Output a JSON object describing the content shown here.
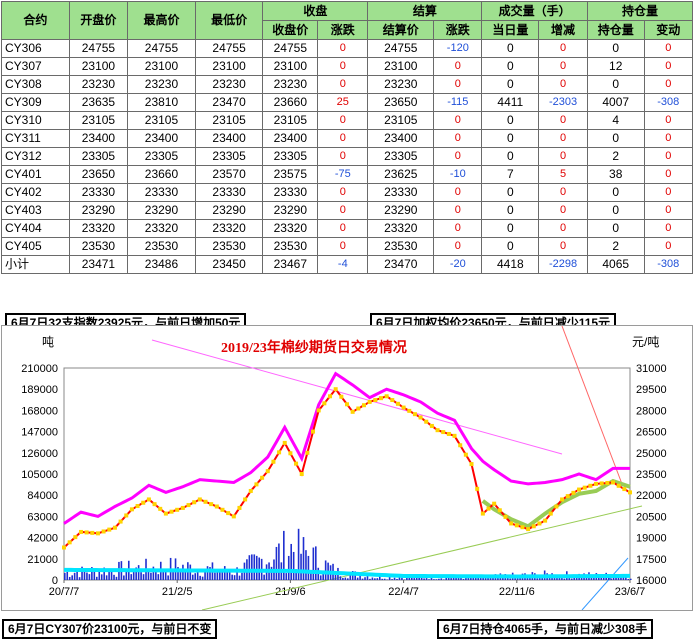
{
  "table": {
    "header_top": [
      "合约",
      "开盘价",
      "最高价",
      "最低价",
      "收盘",
      "结算",
      "成交量（手）",
      "持仓量"
    ],
    "header_sub": [
      "收盘价",
      "涨跌",
      "结算价",
      "涨跌",
      "当日量",
      "增减",
      "持仓量",
      "变动"
    ],
    "rows": [
      {
        "contract": "CY306",
        "open": "24755",
        "high": "24755",
        "low": "24755",
        "close": "24755",
        "chg": "0",
        "settle": "24755",
        "schg": "-120",
        "vol": "0",
        "vchg": "0",
        "oi": "0",
        "oichg": "0"
      },
      {
        "contract": "CY307",
        "open": "23100",
        "high": "23100",
        "low": "23100",
        "close": "23100",
        "chg": "0",
        "settle": "23100",
        "schg": "0",
        "vol": "0",
        "vchg": "0",
        "oi": "12",
        "oichg": "0"
      },
      {
        "contract": "CY308",
        "open": "23230",
        "high": "23230",
        "low": "23230",
        "close": "23230",
        "chg": "0",
        "settle": "23230",
        "schg": "0",
        "vol": "0",
        "vchg": "0",
        "oi": "0",
        "oichg": "0"
      },
      {
        "contract": "CY309",
        "open": "23635",
        "high": "23810",
        "low": "23470",
        "close": "23660",
        "chg": "25",
        "settle": "23650",
        "schg": "-115",
        "vol": "4411",
        "vchg": "-2303",
        "oi": "4007",
        "oichg": "-308"
      },
      {
        "contract": "CY310",
        "open": "23105",
        "high": "23105",
        "low": "23105",
        "close": "23105",
        "chg": "0",
        "settle": "23105",
        "schg": "0",
        "vol": "0",
        "vchg": "0",
        "oi": "4",
        "oichg": "0"
      },
      {
        "contract": "CY311",
        "open": "23400",
        "high": "23400",
        "low": "23400",
        "close": "23400",
        "chg": "0",
        "settle": "23400",
        "schg": "0",
        "vol": "0",
        "vchg": "0",
        "oi": "0",
        "oichg": "0"
      },
      {
        "contract": "CY312",
        "open": "23305",
        "high": "23305",
        "low": "23305",
        "close": "23305",
        "chg": "0",
        "settle": "23305",
        "schg": "0",
        "vol": "0",
        "vchg": "0",
        "oi": "2",
        "oichg": "0"
      },
      {
        "contract": "CY401",
        "open": "23650",
        "high": "23660",
        "low": "23570",
        "close": "23575",
        "chg": "-75",
        "settle": "23625",
        "schg": "-10",
        "vol": "7",
        "vchg": "5",
        "oi": "38",
        "oichg": "0"
      },
      {
        "contract": "CY402",
        "open": "23330",
        "high": "23330",
        "low": "23330",
        "close": "23330",
        "chg": "0",
        "settle": "23330",
        "schg": "0",
        "vol": "0",
        "vchg": "0",
        "oi": "0",
        "oichg": "0"
      },
      {
        "contract": "CY403",
        "open": "23290",
        "high": "23290",
        "low": "23290",
        "close": "23290",
        "chg": "0",
        "settle": "23290",
        "schg": "0",
        "vol": "0",
        "vchg": "0",
        "oi": "0",
        "oichg": "0"
      },
      {
        "contract": "CY404",
        "open": "23320",
        "high": "23320",
        "low": "23320",
        "close": "23320",
        "chg": "0",
        "settle": "23320",
        "schg": "0",
        "vol": "0",
        "vchg": "0",
        "oi": "0",
        "oichg": "0"
      },
      {
        "contract": "CY405",
        "open": "23530",
        "high": "23530",
        "low": "23530",
        "close": "23530",
        "chg": "0",
        "settle": "23530",
        "schg": "0",
        "vol": "0",
        "vchg": "0",
        "oi": "2",
        "oichg": "0"
      },
      {
        "contract": "小计",
        "open": "23471",
        "high": "23486",
        "low": "23450",
        "close": "23467",
        "chg": "-4",
        "settle": "23470",
        "schg": "-20",
        "vol": "4418",
        "vchg": "-2298",
        "oi": "4065",
        "oichg": "-308"
      }
    ]
  },
  "callouts": {
    "top_left": "6月7日32支指数23925元，与前日增加50元",
    "top_right": "6月7日加权均价23650元，与前日减少115元",
    "bottom_left": "6月7日CY307价23100元，与前日不变",
    "bottom_right": "6月7日持仓4065手，与前日减少308手"
  },
  "colors": {
    "header_bg": "#9fe08f",
    "positive": "#e00000",
    "negative": "#1f4fd8",
    "index_line": "#ff00ff",
    "price_line": "#ff0000",
    "price_marker": "#ffd400",
    "avg_line": "#99cc55",
    "volume_bar": "#1f2fd0",
    "open_interest": "#00e5ff",
    "title": "#e00000"
  },
  "chart_data": {
    "type": "line",
    "title": "2019/23年棉纱期货日交易情况",
    "left_unit": "吨",
    "right_unit": "元/吨",
    "y_left_ticks": [
      "0",
      "21000",
      "42000",
      "63000",
      "84000",
      "105000",
      "126000",
      "147000",
      "168000",
      "189000",
      "210000"
    ],
    "y_right_ticks": [
      "16000",
      "17500",
      "19000",
      "20500",
      "22000",
      "23500",
      "25000",
      "26500",
      "28000",
      "29500",
      "31000"
    ],
    "ylim_left": [
      0,
      210000
    ],
    "ylim_right": [
      16000,
      31000
    ],
    "x_ticks": [
      "20/7/7",
      "21/2/5",
      "21/9/6",
      "22/4/7",
      "22/11/6",
      "23/6/7"
    ],
    "series": [
      {
        "role": "index",
        "axis": "right",
        "values": [
          [
            0,
            20000
          ],
          [
            3,
            20800
          ],
          [
            6,
            20500
          ],
          [
            9,
            21200
          ],
          [
            12,
            21800
          ],
          [
            15,
            22700
          ],
          [
            18,
            22200
          ],
          [
            21,
            22600
          ],
          [
            24,
            23100
          ],
          [
            27,
            23000
          ],
          [
            30,
            22900
          ],
          [
            33,
            23600
          ],
          [
            36,
            24700
          ],
          [
            39,
            26800
          ],
          [
            42,
            24600
          ],
          [
            45,
            28400
          ],
          [
            48,
            30600
          ],
          [
            51,
            29800
          ],
          [
            54,
            28900
          ],
          [
            57,
            29500
          ],
          [
            60,
            29100
          ],
          [
            63,
            28600
          ],
          [
            66,
            27800
          ],
          [
            69,
            27300
          ],
          [
            72,
            25300
          ],
          [
            74,
            24400
          ],
          [
            76,
            23800
          ],
          [
            79,
            23000
          ],
          [
            82,
            22800
          ],
          [
            85,
            22900
          ],
          [
            88,
            23100
          ],
          [
            91,
            23500
          ],
          [
            94,
            23100
          ],
          [
            97,
            23900
          ],
          [
            100,
            23900
          ]
        ]
      },
      {
        "role": "price",
        "axis": "right",
        "values": [
          [
            0,
            18300
          ],
          [
            3,
            19400
          ],
          [
            6,
            19300
          ],
          [
            9,
            19700
          ],
          [
            12,
            21000
          ],
          [
            15,
            21700
          ],
          [
            18,
            20700
          ],
          [
            21,
            21100
          ],
          [
            24,
            21700
          ],
          [
            27,
            21200
          ],
          [
            30,
            20500
          ],
          [
            33,
            22300
          ],
          [
            36,
            23700
          ],
          [
            39,
            25700
          ],
          [
            42,
            23500
          ],
          [
            45,
            28000
          ],
          [
            48,
            29500
          ],
          [
            51,
            27900
          ],
          [
            54,
            28600
          ],
          [
            57,
            29000
          ],
          [
            60,
            28200
          ],
          [
            63,
            27500
          ],
          [
            66,
            26600
          ],
          [
            69,
            26200
          ],
          [
            72,
            24200
          ],
          [
            74,
            20700
          ],
          [
            76,
            21400
          ],
          [
            79,
            20000
          ],
          [
            82,
            19600
          ],
          [
            85,
            20200
          ],
          [
            88,
            21700
          ],
          [
            91,
            22400
          ],
          [
            94,
            22800
          ],
          [
            97,
            22900
          ],
          [
            100,
            22200
          ]
        ]
      },
      {
        "role": "average",
        "axis": "right",
        "values": [
          [
            74,
            21600
          ],
          [
            76,
            21000
          ],
          [
            79,
            20300
          ],
          [
            82,
            19800
          ],
          [
            85,
            20700
          ],
          [
            88,
            21500
          ],
          [
            91,
            22100
          ],
          [
            94,
            22300
          ],
          [
            97,
            23000
          ],
          [
            100,
            22600
          ]
        ]
      },
      {
        "role": "open_interest",
        "axis": "left",
        "values": [
          [
            0,
            10000
          ],
          [
            20,
            9500
          ],
          [
            40,
            9000
          ],
          [
            60,
            4000
          ],
          [
            80,
            3500
          ],
          [
            100,
            4065
          ]
        ]
      },
      {
        "role": "volume",
        "axis": "left",
        "values": [
          [
            0,
            8000
          ],
          [
            10,
            12000
          ],
          [
            20,
            15000
          ],
          [
            30,
            9000
          ],
          [
            40,
            35000
          ],
          [
            43,
            28000
          ],
          [
            48,
            9000
          ],
          [
            55,
            3000
          ],
          [
            70,
            2500
          ],
          [
            85,
            6000
          ],
          [
            100,
            4418
          ]
        ]
      }
    ]
  }
}
